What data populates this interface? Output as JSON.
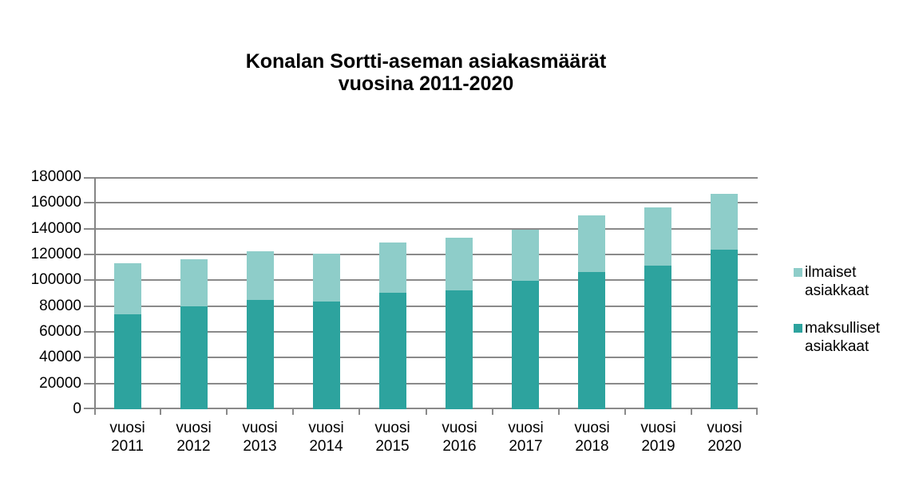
{
  "page": {
    "background": "#ffffff"
  },
  "title": {
    "line1": "Konalan Sortti-aseman asiakasmäärät",
    "line2": "vuosina 2011-2020"
  },
  "chart_data": {
    "type": "bar",
    "stacked": true,
    "title": "Konalan Sortti-aseman asiakasmäärät vuosina 2011-2020",
    "categories": [
      "vuosi 2011",
      "vuosi 2012",
      "vuosi 2013",
      "vuosi 2014",
      "vuosi 2015",
      "vuosi 2016",
      "vuosi 2017",
      "vuosi 2018",
      "vuosi 2019",
      "vuosi 2020"
    ],
    "series": [
      {
        "name": "maksulliset asiakkaat",
        "color": "#2da39e",
        "values": [
          73500,
          79500,
          84500,
          83500,
          90500,
          92000,
          99500,
          106500,
          111500,
          123500
        ]
      },
      {
        "name": "ilmaiset asiakkaat",
        "color": "#8ecdc9",
        "values": [
          40000,
          36500,
          38000,
          37000,
          38500,
          41000,
          39500,
          43500,
          45000,
          43500
        ]
      }
    ],
    "stack_totals": [
      113500,
      116000,
      122500,
      120500,
      129000,
      133000,
      139000,
      150000,
      156500,
      167000
    ],
    "ylim": [
      0,
      180000
    ],
    "ytick_step": 20000,
    "ytick_labels": [
      "0",
      "20000",
      "40000",
      "60000",
      "80000",
      "100000",
      "120000",
      "140000",
      "160000",
      "180000"
    ],
    "grid": "horizontal",
    "gridline_color": "#8a8a8a",
    "axis_color": "#848484",
    "text_color": "#000000",
    "legend_position": "right",
    "legend_order_top_to_bottom": [
      "ilmaiset asiakkaat",
      "maksulliset asiakkaat"
    ]
  }
}
